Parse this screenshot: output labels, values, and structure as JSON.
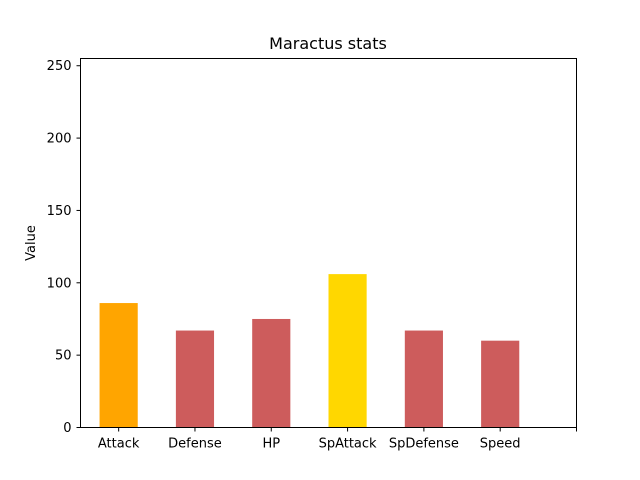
{
  "chart_data": {
    "type": "bar",
    "title": "Maractus stats",
    "xlabel": "",
    "ylabel": "Value",
    "ylim": [
      0,
      255
    ],
    "yticks": [
      0,
      50,
      100,
      150,
      200,
      250
    ],
    "grid": false,
    "categories": [
      "Attack",
      "Defense",
      "HP",
      "SpAttack",
      "SpDefense",
      "Speed"
    ],
    "values": [
      86,
      67,
      75,
      106,
      67,
      60
    ],
    "colors": [
      "#ffa500",
      "#cd5c5c",
      "#cd5c5c",
      "#ffd700",
      "#cd5c5c",
      "#cd5c5c"
    ]
  }
}
